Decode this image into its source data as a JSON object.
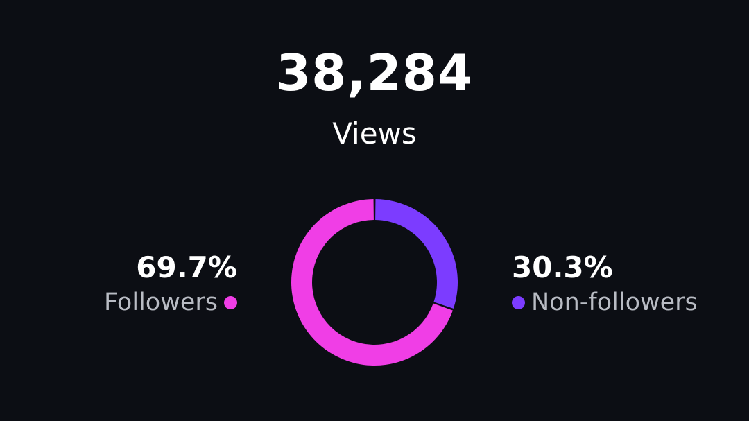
{
  "total": {
    "value": "38,284",
    "label": "Views"
  },
  "breakdown": [
    {
      "label": "Followers",
      "percent_text": "69.7%",
      "color": "#f03ee6",
      "icon": "legend-dot-icon"
    },
    {
      "label": "Non-followers",
      "percent_text": "30.3%",
      "color": "#7c3cff",
      "icon": "legend-dot-icon"
    }
  ],
  "chart_data": {
    "type": "pie",
    "categories": [
      "Followers",
      "Non-followers"
    ],
    "values": [
      69.7,
      30.3
    ],
    "colors": [
      "#f03ee6",
      "#7c3cff"
    ]
  }
}
